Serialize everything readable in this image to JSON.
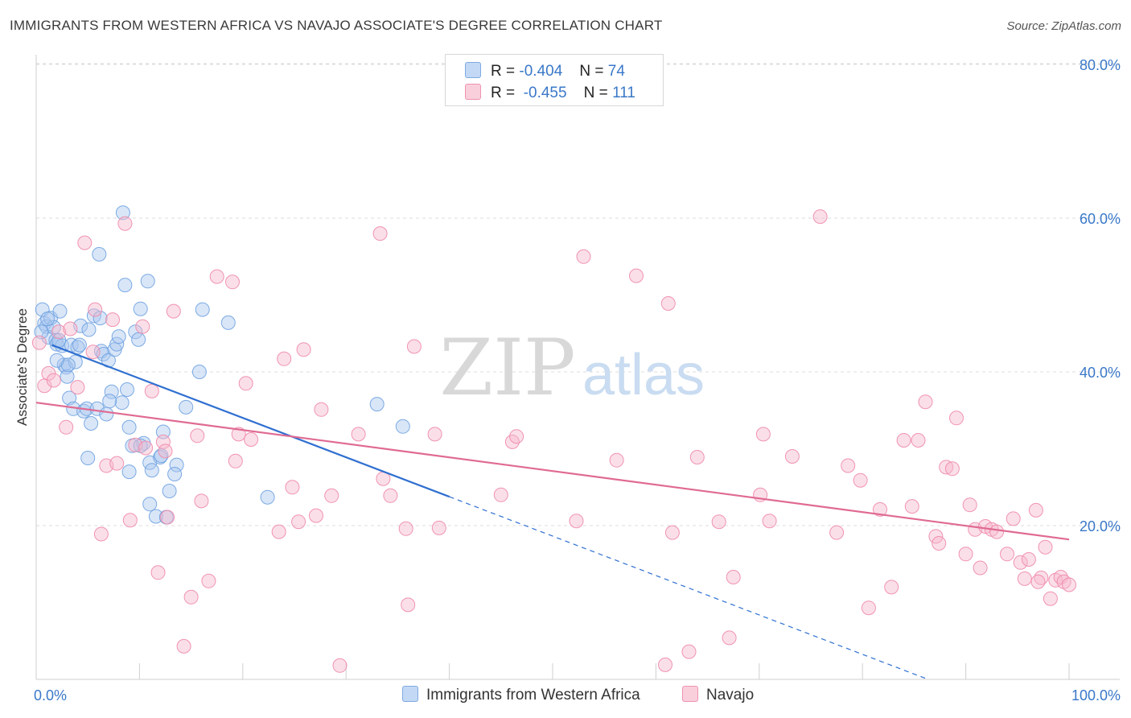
{
  "title": "IMMIGRANTS FROM WESTERN AFRICA VS NAVAJO ASSOCIATE'S DEGREE CORRELATION CHART",
  "source": "Source: ZipAtlas.com",
  "watermark": {
    "zip": "ZIP",
    "atlas": "atlas"
  },
  "legend": {
    "rows": [
      {
        "r_label": "R =",
        "r_value": "-0.404",
        "n_label": "N =",
        "n_value": "74",
        "color": "#aac8f0"
      },
      {
        "r_label": "R =",
        "r_value": "-0.455",
        "n_label": "N =",
        "n_value": "111",
        "color": "#f6b8cc"
      }
    ]
  },
  "chart_data": {
    "type": "scatter",
    "title": "IMMIGRANTS FROM WESTERN AFRICA VS NAVAJO ASSOCIATE'S DEGREE CORRELATION CHART",
    "xlabel": "",
    "ylabel": "Associate's Degree",
    "xlim": [
      0,
      100
    ],
    "ylim": [
      0,
      82
    ],
    "x_tick_labels": [
      {
        "value": 0,
        "label": "0.0%"
      },
      {
        "value": 100,
        "label": "100.0%"
      }
    ],
    "y_tick_labels": [
      {
        "value": 20,
        "label": "20.0%"
      },
      {
        "value": 40,
        "label": "40.0%"
      },
      {
        "value": 60,
        "label": "60.0%"
      },
      {
        "value": 80,
        "label": "80.0%"
      }
    ],
    "series": [
      {
        "name": "Immigrants from Western Africa",
        "color": "#6fa2e0",
        "fill": "#aac8f0",
        "line_color": "#2f6fd0",
        "trend": {
          "x_start": 1.5,
          "y_start": 43.5,
          "x_solid_end": 40,
          "x_end": 100,
          "y_end": -7.0
        },
        "points": [
          [
            0.6,
            48.1
          ],
          [
            0.8,
            46.3
          ],
          [
            1.0,
            45.9
          ],
          [
            1.2,
            44.5
          ],
          [
            1.4,
            47.0
          ],
          [
            1.7,
            45.8
          ],
          [
            1.9,
            44.1
          ],
          [
            2.0,
            43.6
          ],
          [
            2.3,
            47.9
          ],
          [
            2.5,
            43.4
          ],
          [
            2.7,
            40.9
          ],
          [
            2.9,
            40.6
          ],
          [
            3.0,
            39.4
          ],
          [
            3.2,
            36.6
          ],
          [
            3.4,
            43.5
          ],
          [
            3.6,
            35.2
          ],
          [
            3.8,
            41.3
          ],
          [
            4.0,
            43.2
          ],
          [
            4.3,
            46.0
          ],
          [
            4.6,
            34.9
          ],
          [
            4.9,
            35.2
          ],
          [
            5.1,
            45.5
          ],
          [
            5.3,
            33.3
          ],
          [
            5.6,
            47.3
          ],
          [
            5.9,
            35.2
          ],
          [
            6.1,
            55.3
          ],
          [
            6.3,
            42.7
          ],
          [
            6.5,
            42.3
          ],
          [
            6.8,
            34.5
          ],
          [
            7.0,
            41.5
          ],
          [
            7.3,
            37.4
          ],
          [
            7.6,
            42.9
          ],
          [
            7.8,
            43.6
          ],
          [
            8.0,
            44.6
          ],
          [
            8.3,
            36.0
          ],
          [
            8.6,
            51.3
          ],
          [
            8.8,
            37.7
          ],
          [
            9.0,
            32.8
          ],
          [
            9.3,
            30.4
          ],
          [
            9.6,
            45.2
          ],
          [
            9.9,
            44.2
          ],
          [
            10.1,
            48.2
          ],
          [
            10.4,
            30.7
          ],
          [
            10.8,
            51.8
          ],
          [
            11.0,
            28.2
          ],
          [
            11.2,
            27.2
          ],
          [
            11.6,
            21.2
          ],
          [
            12.0,
            28.9
          ],
          [
            12.3,
            32.2
          ],
          [
            12.6,
            21.1
          ],
          [
            12.9,
            24.5
          ],
          [
            13.6,
            27.9
          ],
          [
            14.5,
            35.4
          ],
          [
            15.8,
            40.0
          ],
          [
            5.0,
            28.8
          ],
          [
            7.1,
            36.2
          ],
          [
            9.0,
            27.0
          ],
          [
            16.1,
            48.1
          ],
          [
            18.6,
            46.4
          ],
          [
            22.4,
            23.7
          ],
          [
            33.0,
            35.8
          ],
          [
            35.5,
            32.9
          ],
          [
            8.4,
            60.7
          ],
          [
            11.0,
            22.8
          ],
          [
            3.1,
            40.9
          ],
          [
            2.2,
            44.1
          ],
          [
            4.2,
            43.5
          ],
          [
            6.2,
            47.0
          ],
          [
            10.1,
            30.4
          ],
          [
            12.1,
            29.1
          ],
          [
            13.4,
            26.7
          ],
          [
            1.1,
            46.9
          ],
          [
            2.0,
            41.5
          ],
          [
            0.5,
            45.2
          ]
        ]
      },
      {
        "name": "Navajo",
        "color": "#ee8aaa",
        "fill": "#f6b8cc",
        "line_color": "#e06a92",
        "trend": {
          "x_start": 0,
          "y_start": 36.0,
          "x_end": 100,
          "y_end": 18.2
        },
        "points": [
          [
            0.3,
            43.8
          ],
          [
            0.8,
            38.2
          ],
          [
            1.2,
            39.8
          ],
          [
            1.7,
            38.9
          ],
          [
            2.2,
            45.2
          ],
          [
            2.9,
            32.8
          ],
          [
            3.3,
            45.6
          ],
          [
            4.0,
            38.0
          ],
          [
            4.7,
            56.8
          ],
          [
            5.5,
            42.6
          ],
          [
            5.7,
            48.1
          ],
          [
            6.3,
            18.9
          ],
          [
            6.8,
            27.8
          ],
          [
            7.4,
            46.8
          ],
          [
            7.8,
            28.1
          ],
          [
            8.6,
            59.3
          ],
          [
            9.1,
            20.7
          ],
          [
            9.6,
            30.5
          ],
          [
            10.3,
            45.9
          ],
          [
            10.6,
            30.1
          ],
          [
            11.2,
            37.5
          ],
          [
            11.8,
            13.9
          ],
          [
            12.3,
            30.9
          ],
          [
            12.5,
            29.7
          ],
          [
            12.7,
            21.1
          ],
          [
            13.3,
            47.9
          ],
          [
            14.3,
            4.3
          ],
          [
            15.0,
            10.7
          ],
          [
            15.6,
            31.7
          ],
          [
            16.0,
            23.2
          ],
          [
            16.7,
            12.8
          ],
          [
            17.5,
            52.4
          ],
          [
            19.0,
            51.7
          ],
          [
            19.3,
            28.4
          ],
          [
            19.6,
            31.9
          ],
          [
            20.3,
            38.5
          ],
          [
            20.8,
            31.2
          ],
          [
            23.5,
            19.2
          ],
          [
            24.0,
            41.7
          ],
          [
            24.8,
            25.0
          ],
          [
            25.4,
            20.5
          ],
          [
            25.9,
            42.9
          ],
          [
            27.1,
            21.3
          ],
          [
            27.6,
            35.1
          ],
          [
            28.6,
            23.9
          ],
          [
            29.4,
            1.8
          ],
          [
            31.2,
            31.9
          ],
          [
            33.3,
            58.0
          ],
          [
            33.6,
            26.1
          ],
          [
            34.3,
            23.9
          ],
          [
            35.8,
            19.6
          ],
          [
            36.0,
            9.7
          ],
          [
            36.6,
            43.3
          ],
          [
            38.6,
            31.9
          ],
          [
            39.0,
            19.7
          ],
          [
            45.0,
            24.0
          ],
          [
            46.1,
            30.9
          ],
          [
            46.5,
            31.6
          ],
          [
            52.3,
            20.6
          ],
          [
            53.0,
            55.0
          ],
          [
            56.2,
            28.5
          ],
          [
            58.1,
            52.5
          ],
          [
            60.9,
            1.9
          ],
          [
            61.2,
            48.9
          ],
          [
            61.6,
            19.1
          ],
          [
            63.2,
            3.6
          ],
          [
            64.0,
            28.9
          ],
          [
            66.1,
            20.5
          ],
          [
            67.1,
            5.4
          ],
          [
            67.5,
            13.3
          ],
          [
            70.1,
            24.0
          ],
          [
            70.4,
            31.9
          ],
          [
            71.0,
            20.6
          ],
          [
            73.2,
            29.0
          ],
          [
            75.9,
            60.2
          ],
          [
            77.5,
            19.1
          ],
          [
            78.6,
            27.8
          ],
          [
            79.8,
            25.9
          ],
          [
            80.6,
            9.3
          ],
          [
            81.7,
            22.1
          ],
          [
            82.8,
            12.0
          ],
          [
            84.0,
            31.1
          ],
          [
            84.8,
            22.5
          ],
          [
            85.4,
            31.1
          ],
          [
            86.1,
            36.1
          ],
          [
            87.1,
            18.6
          ],
          [
            87.4,
            17.7
          ],
          [
            88.1,
            27.6
          ],
          [
            88.7,
            27.4
          ],
          [
            89.1,
            34.0
          ],
          [
            90.0,
            16.3
          ],
          [
            90.4,
            22.7
          ],
          [
            90.9,
            19.5
          ],
          [
            91.4,
            14.5
          ],
          [
            91.9,
            19.9
          ],
          [
            92.5,
            19.5
          ],
          [
            93.0,
            19.2
          ],
          [
            94.0,
            16.3
          ],
          [
            94.6,
            20.9
          ],
          [
            95.3,
            15.2
          ],
          [
            95.7,
            13.1
          ],
          [
            96.1,
            15.6
          ],
          [
            96.8,
            22.0
          ],
          [
            97.3,
            13.2
          ],
          [
            97.7,
            17.2
          ],
          [
            98.2,
            10.5
          ],
          [
            98.7,
            12.9
          ],
          [
            99.2,
            13.3
          ],
          [
            99.5,
            12.7
          ],
          [
            100.0,
            12.3
          ],
          [
            97.0,
            12.7
          ]
        ]
      }
    ]
  },
  "bottom_legend": [
    {
      "label": "Immigrants from Western Africa",
      "color": "#aac8f0"
    },
    {
      "label": "Navajo",
      "color": "#f6b8cc"
    }
  ]
}
